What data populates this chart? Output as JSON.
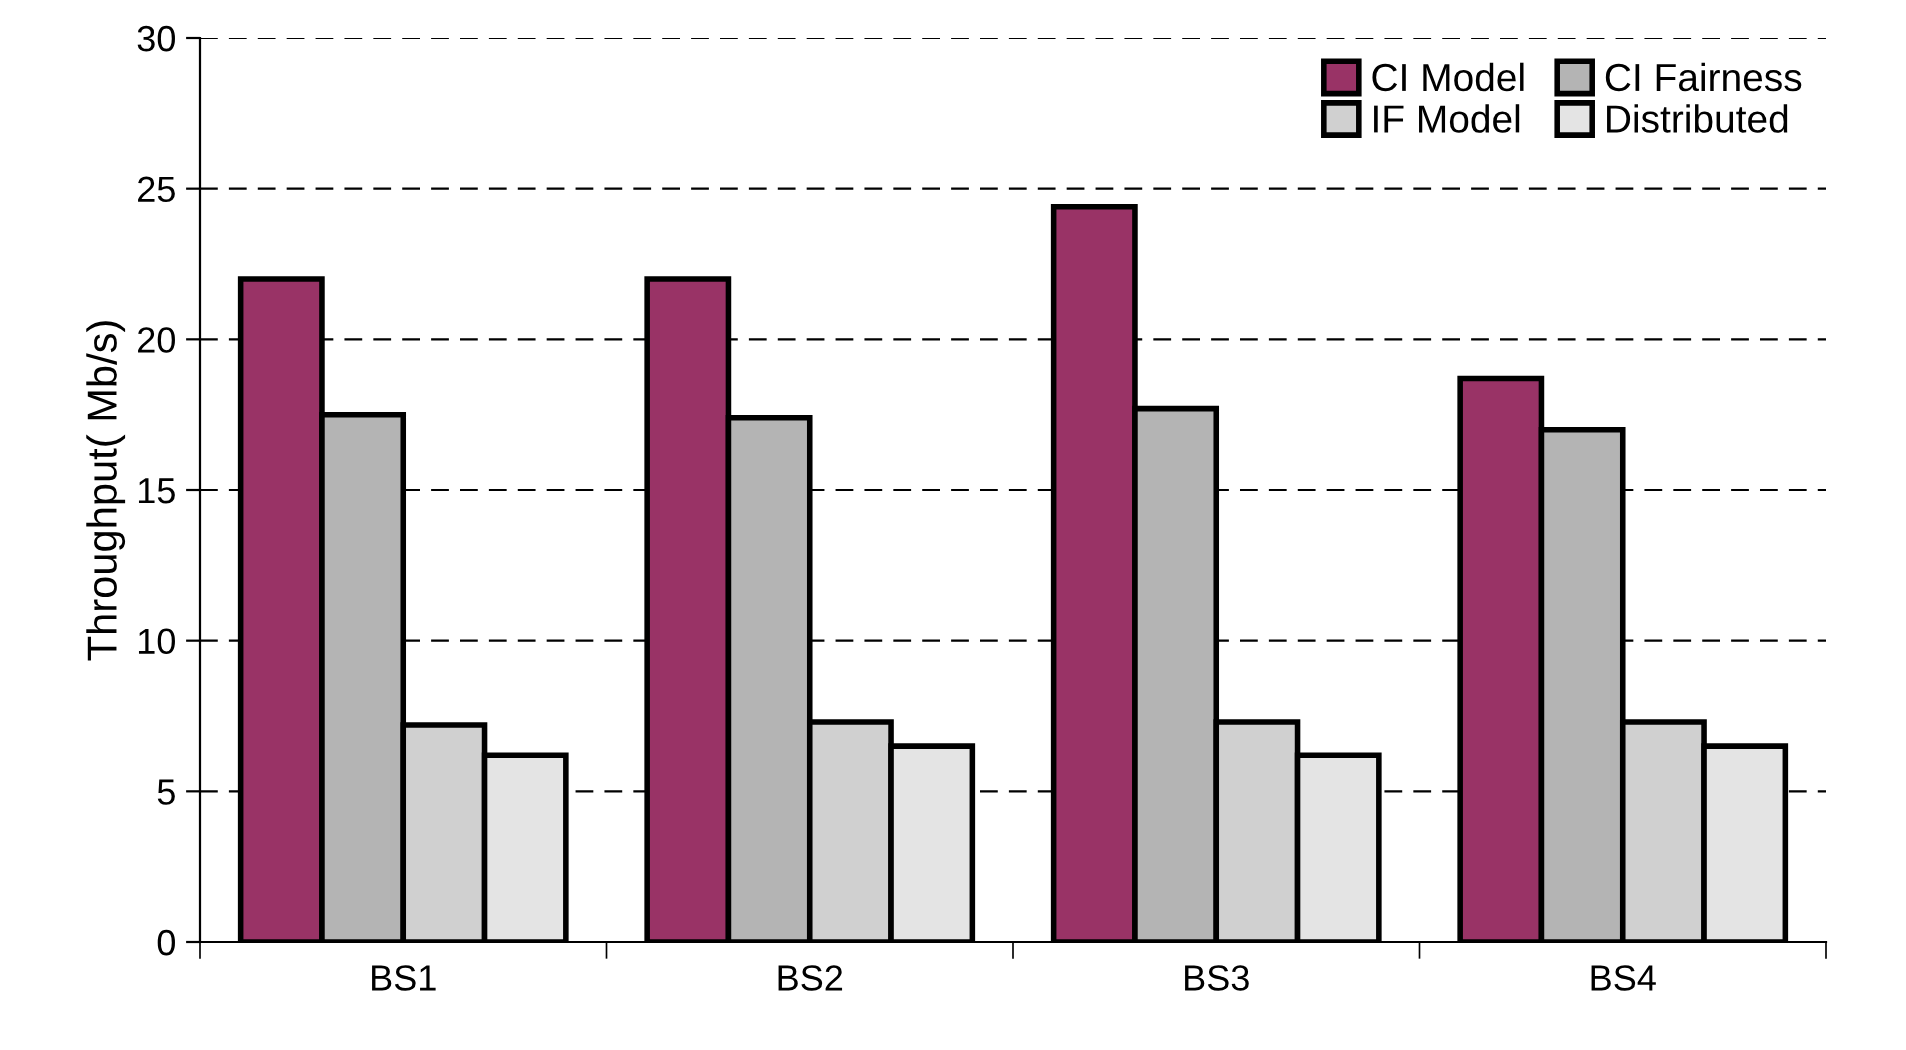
{
  "chart_data": {
    "type": "bar",
    "ylabel": "Throughput( Mb/s)",
    "categories": [
      "BS1",
      "BS2",
      "BS3",
      "BS4"
    ],
    "series": [
      {
        "name": "CI Model",
        "color": "#993366",
        "values": [
          22.0,
          22.0,
          24.4,
          18.7
        ]
      },
      {
        "name": "CI Fairness",
        "color": "#b4b4b4",
        "values": [
          17.5,
          17.4,
          17.7,
          17.0
        ]
      },
      {
        "name": "IF Model",
        "color": "#d0d0d0",
        "values": [
          7.2,
          7.3,
          7.3,
          7.3
        ]
      },
      {
        "name": "Distributed",
        "color": "#e4e4e4",
        "values": [
          6.2,
          6.5,
          6.2,
          6.5
        ]
      }
    ],
    "ylim": [
      0,
      30
    ],
    "yticks": [
      0,
      5,
      10,
      15,
      20,
      25,
      30
    ],
    "grid": "y",
    "legend": "top right"
  }
}
